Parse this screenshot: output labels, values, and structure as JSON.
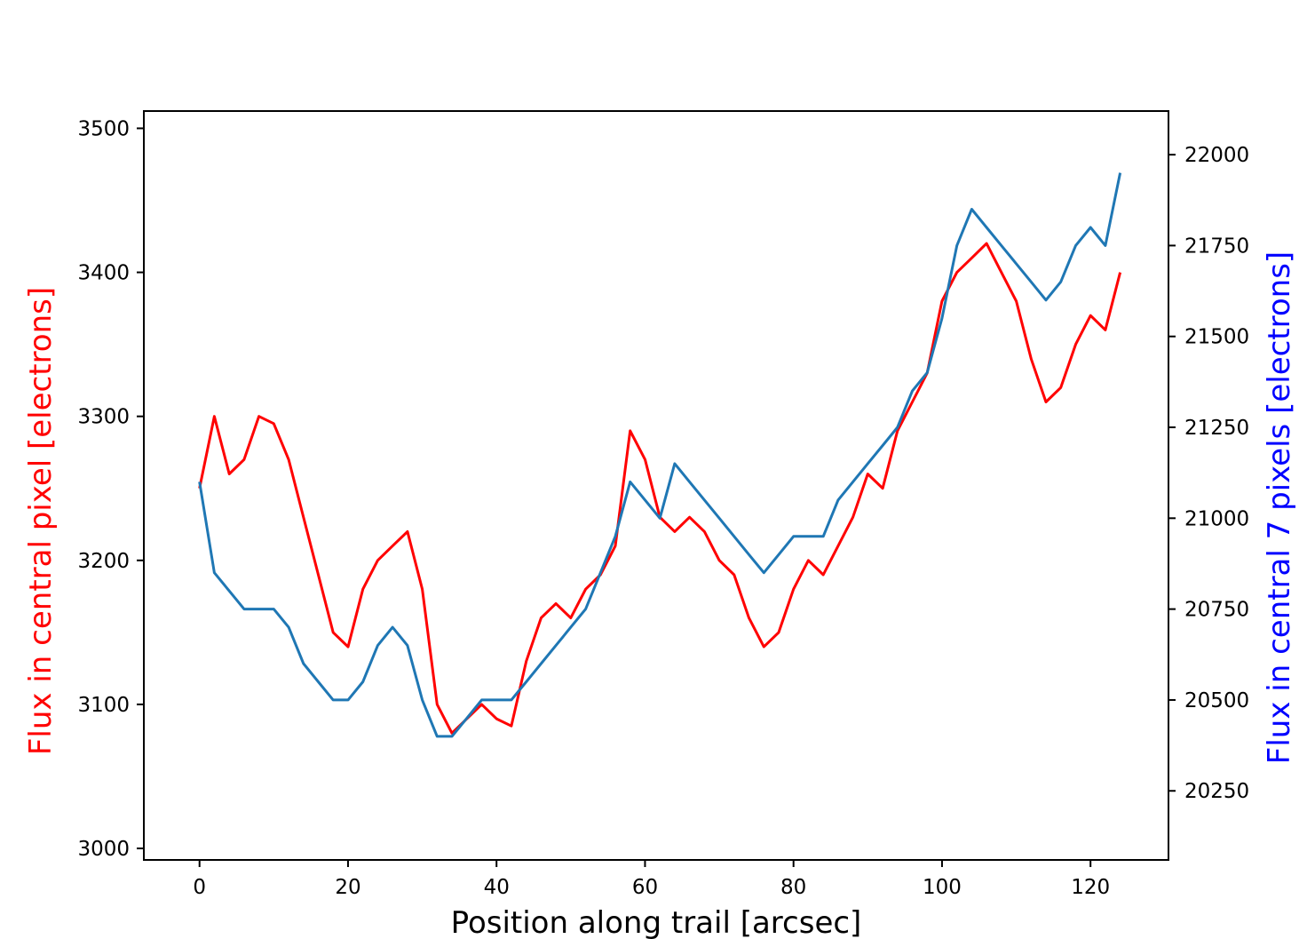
{
  "chart_data": {
    "type": "line",
    "xlabel": "Position along trail [arcsec]",
    "ylabel_left": "Flux in central pixel [electrons]",
    "ylabel_right": "Flux in central 7 pixels [electrons]",
    "xlim": [
      -7.5,
      130.5
    ],
    "ylim_left": [
      2992,
      3512
    ],
    "ylim_right": [
      20060,
      22120
    ],
    "x_ticks": [
      0,
      20,
      40,
      60,
      80,
      100,
      120
    ],
    "y_ticks_left": [
      3000,
      3100,
      3200,
      3300,
      3400,
      3500
    ],
    "y_ticks_right": [
      20250,
      20500,
      20750,
      21000,
      21250,
      21500,
      21750,
      22000
    ],
    "grid": false,
    "colors": {
      "left_series": "#ff0000",
      "right_series": "#1f77b4",
      "left_label": "#ff0000",
      "right_label": "#0000ff",
      "axes": "#000000"
    },
    "series": [
      {
        "axis": "left",
        "x": [
          0,
          2,
          4,
          6,
          8,
          10,
          12,
          14,
          16,
          18,
          20,
          22,
          24,
          26,
          28,
          30,
          32,
          34,
          36,
          38,
          40,
          42,
          44,
          46,
          48,
          50,
          52,
          54,
          56,
          58,
          60,
          62,
          64,
          66,
          68,
          70,
          72,
          74,
          76,
          78,
          80,
          82,
          84,
          86,
          88,
          90,
          92,
          94,
          96,
          98,
          100,
          102,
          104,
          106,
          108,
          110,
          112,
          114,
          116,
          118,
          120,
          122,
          124
        ],
        "values": [
          3250,
          3300,
          3260,
          3270,
          3300,
          3295,
          3270,
          3230,
          3190,
          3150,
          3140,
          3180,
          3200,
          3210,
          3220,
          3180,
          3100,
          3080,
          3090,
          3100,
          3090,
          3085,
          3130,
          3160,
          3170,
          3160,
          3180,
          3190,
          3210,
          3290,
          3270,
          3230,
          3220,
          3230,
          3220,
          3200,
          3190,
          3160,
          3140,
          3150,
          3180,
          3200,
          3190,
          3210,
          3230,
          3260,
          3250,
          3290,
          3310,
          3330,
          3380,
          3400,
          3410,
          3420,
          3400,
          3380,
          3340,
          3310,
          3320,
          3350,
          3370,
          3360,
          3400
        ]
      },
      {
        "axis": "right",
        "x": [
          0,
          2,
          4,
          6,
          8,
          10,
          12,
          14,
          16,
          18,
          20,
          22,
          24,
          26,
          28,
          30,
          32,
          34,
          36,
          38,
          40,
          42,
          44,
          46,
          48,
          50,
          52,
          54,
          56,
          58,
          60,
          62,
          64,
          66,
          68,
          70,
          72,
          74,
          76,
          78,
          80,
          82,
          84,
          86,
          88,
          90,
          92,
          94,
          96,
          98,
          100,
          102,
          104,
          106,
          108,
          110,
          112,
          114,
          116,
          118,
          120,
          122,
          124
        ],
        "values": [
          21100,
          20850,
          20800,
          20750,
          20750,
          20750,
          20700,
          20600,
          20550,
          20500,
          20500,
          20550,
          20650,
          20700,
          20650,
          20500,
          20400,
          20400,
          20450,
          20500,
          20500,
          20500,
          20550,
          20600,
          20650,
          20700,
          20750,
          20850,
          20950,
          21100,
          21050,
          21000,
          21150,
          21100,
          21050,
          21000,
          20950,
          20900,
          20850,
          20900,
          20950,
          20950,
          20950,
          21050,
          21100,
          21150,
          21200,
          21250,
          21350,
          21400,
          21550,
          21750,
          21850,
          21800,
          21750,
          21700,
          21650,
          21600,
          21650,
          21750,
          21800,
          21750,
          21950
        ]
      }
    ]
  }
}
